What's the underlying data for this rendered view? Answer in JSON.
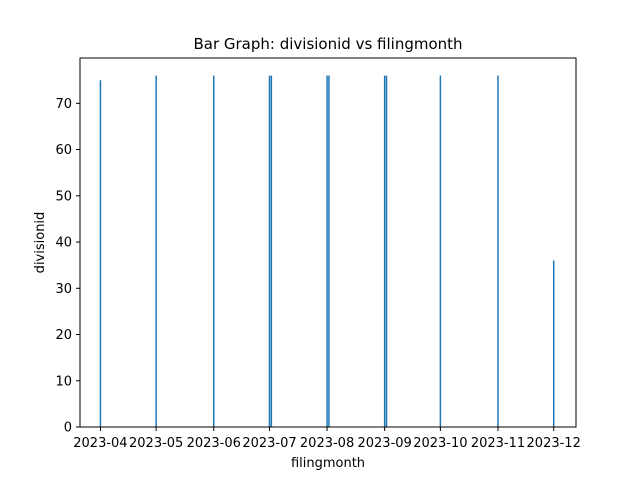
{
  "chart_data": {
    "type": "bar",
    "title": "Bar Graph: divisionid vs filingmonth",
    "xlabel": "filingmonth",
    "ylabel": "divisionid",
    "x_ticks": [
      "2023-04",
      "2023-05",
      "2023-06",
      "2023-07",
      "2023-08",
      "2023-09",
      "2023-10",
      "2023-11",
      "2023-12"
    ],
    "y_ticks": [
      0,
      10,
      20,
      30,
      40,
      50,
      60,
      70
    ],
    "ylim": [
      0,
      79.8
    ],
    "xlim": [
      "2023-03-21",
      "2023-12-13"
    ],
    "grid": false,
    "bar_color": "#1f77b4",
    "series": [
      {
        "x": [
          "2023-04-01",
          "2023-05-01",
          "2023-06-01",
          "2023-07-01",
          "2023-07-02",
          "2023-08-01",
          "2023-08-02",
          "2023-09-01",
          "2023-09-02",
          "2023-10-01",
          "2023-11-01",
          "2023-12-01"
        ],
        "values": [
          75,
          76,
          76,
          76,
          76,
          76,
          76,
          76,
          76,
          76,
          76,
          36
        ]
      }
    ]
  }
}
